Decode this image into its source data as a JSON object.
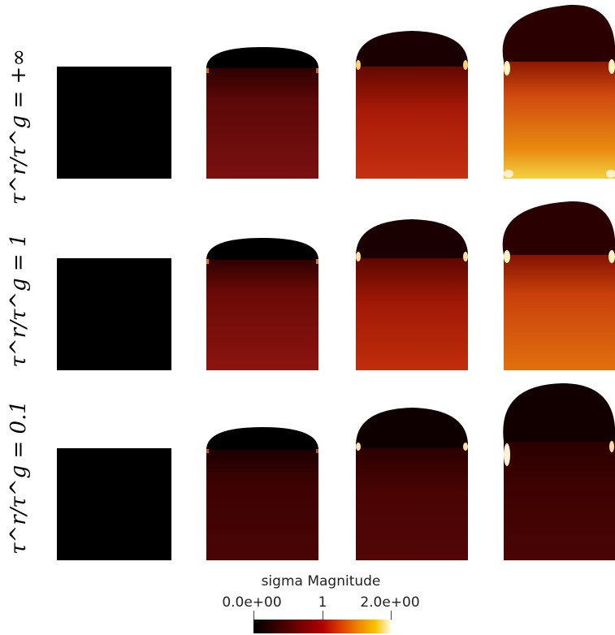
{
  "rows": [
    {
      "label": "τ^r/τ^g = +∞"
    },
    {
      "label": "τ^r/τ^g = 1"
    },
    {
      "label": "τ^r/τ^g = 0.1"
    }
  ],
  "columns": 4,
  "colors": {
    "background": "#ffffff",
    "black_square": "#000000",
    "colormap_low": "#000000",
    "colormap_mid": "#b00000",
    "colormap_high": "#ffffee"
  },
  "colorbar": {
    "title": "sigma Magnitude",
    "min_label": "0.0e+00",
    "mid_label": "1",
    "max_label": "2.0e+00",
    "min": 0,
    "max": 2
  }
}
